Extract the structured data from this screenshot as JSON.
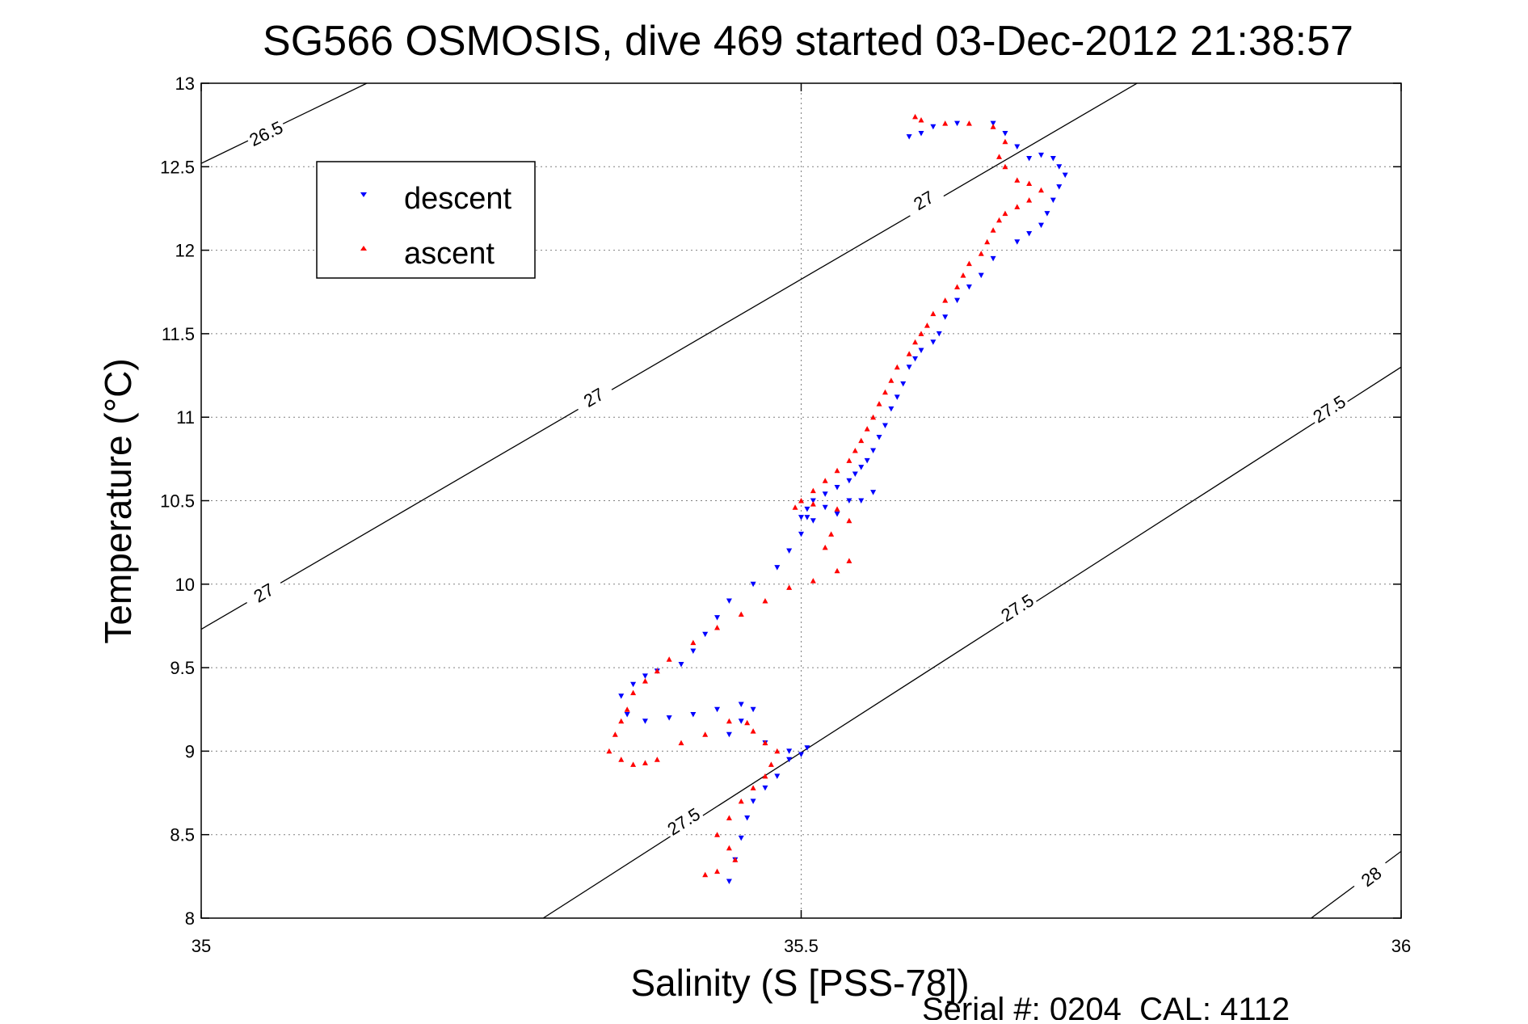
{
  "chart_data": {
    "type": "scatter",
    "title": "SG566 OSMOSIS, dive 469 started 03-Dec-2012 21:38:57",
    "xlabel": "Salinity (S [PSS-78])",
    "ylabel": "Temperature (°C)",
    "xlim": [
      35,
      36
    ],
    "ylim": [
      8,
      13
    ],
    "xticks": [
      35,
      35.5,
      36
    ],
    "xtick_labels": [
      "35",
      "35.5",
      "36"
    ],
    "yticks": [
      8,
      8.5,
      9,
      9.5,
      10,
      10.5,
      11,
      11.5,
      12,
      12.5,
      13
    ],
    "ytick_labels": [
      "8",
      "8.5",
      "9",
      "9.5",
      "10",
      "10.5",
      "11",
      "11.5",
      "12",
      "12.5",
      "13"
    ],
    "grid": true,
    "legend_position": "top-left",
    "footer": "Serial #: 0204  CAL: 4112",
    "density_contours": [
      {
        "label": "26.5",
        "points": [
          [
            35,
            12.52
          ],
          [
            35.138,
            13
          ]
        ],
        "label_at": [
          [
            35.054,
            12.7
          ]
        ]
      },
      {
        "label": "27",
        "points": [
          [
            35,
            9.73
          ],
          [
            35.78,
            13
          ]
        ],
        "label_at": [
          [
            35.052,
            9.95
          ],
          [
            35.327,
            11.12
          ],
          [
            35.602,
            12.3
          ]
        ]
      },
      {
        "label": "27.5",
        "points": [
          [
            35.285,
            8
          ],
          [
            36,
            11.3
          ]
        ],
        "label_at": [
          [
            35.402,
            8.58
          ],
          [
            35.68,
            9.86
          ],
          [
            35.94,
            11.05
          ]
        ]
      },
      {
        "label": "28",
        "points": [
          [
            35.925,
            8
          ],
          [
            36,
            8.4
          ]
        ],
        "label_at": [
          [
            35.975,
            8.25
          ]
        ]
      }
    ],
    "series": [
      {
        "name": "descent",
        "color": "#0000ff",
        "marker": "triangle-down",
        "x": [
          35.59,
          35.6,
          35.61,
          35.63,
          35.66,
          35.67,
          35.68,
          35.69,
          35.7,
          35.71,
          35.715,
          35.72,
          35.715,
          35.71,
          35.705,
          35.7,
          35.69,
          35.68,
          35.66,
          35.65,
          35.64,
          35.63,
          35.62,
          35.615,
          35.61,
          35.6,
          35.595,
          35.59,
          35.585,
          35.58,
          35.575,
          35.57,
          35.565,
          35.56,
          35.555,
          35.55,
          35.545,
          35.54,
          35.53,
          35.52,
          35.51,
          35.505,
          35.5,
          35.51,
          35.53,
          35.55,
          35.56,
          35.54,
          35.52,
          35.505,
          35.5,
          35.49,
          35.48,
          35.46,
          35.44,
          35.43,
          35.42,
          35.41,
          35.4,
          35.38,
          35.37,
          35.36,
          35.35,
          35.355,
          35.37,
          35.39,
          35.41,
          35.43,
          35.45,
          35.46,
          35.45,
          35.44,
          35.47,
          35.49,
          35.5,
          35.505,
          35.49,
          35.48,
          35.47,
          35.46,
          35.455,
          35.45,
          35.445,
          35.44
        ],
        "y": [
          12.68,
          12.7,
          12.74,
          12.76,
          12.76,
          12.7,
          12.62,
          12.55,
          12.57,
          12.55,
          12.5,
          12.45,
          12.38,
          12.3,
          12.22,
          12.15,
          12.1,
          12.05,
          11.95,
          11.85,
          11.78,
          11.7,
          11.6,
          11.5,
          11.45,
          11.4,
          11.35,
          11.3,
          11.2,
          11.12,
          11.05,
          10.95,
          10.88,
          10.8,
          10.74,
          10.7,
          10.66,
          10.62,
          10.58,
          10.54,
          10.5,
          10.45,
          10.4,
          10.38,
          10.42,
          10.5,
          10.55,
          10.5,
          10.46,
          10.4,
          10.3,
          10.2,
          10.1,
          10.0,
          9.9,
          9.8,
          9.7,
          9.6,
          9.52,
          9.48,
          9.45,
          9.4,
          9.33,
          9.22,
          9.18,
          9.2,
          9.22,
          9.25,
          9.28,
          9.25,
          9.18,
          9.1,
          9.05,
          9.0,
          8.98,
          9.02,
          8.95,
          8.85,
          8.78,
          8.7,
          8.6,
          8.48,
          8.35,
          8.22
        ]
      },
      {
        "name": "ascent",
        "color": "#ff0000",
        "marker": "triangle-up",
        "x": [
          35.595,
          35.6,
          35.62,
          35.64,
          35.66,
          35.67,
          35.665,
          35.67,
          35.68,
          35.69,
          35.7,
          35.69,
          35.68,
          35.67,
          35.665,
          35.66,
          35.655,
          35.65,
          35.64,
          35.635,
          35.63,
          35.62,
          35.61,
          35.605,
          35.6,
          35.595,
          35.59,
          35.58,
          35.575,
          35.57,
          35.565,
          35.56,
          35.555,
          35.55,
          35.545,
          35.54,
          35.53,
          35.52,
          35.51,
          35.5,
          35.495,
          35.51,
          35.53,
          35.54,
          35.525,
          35.52,
          35.54,
          35.53,
          35.51,
          35.49,
          35.47,
          35.45,
          35.43,
          35.41,
          35.39,
          35.38,
          35.37,
          35.36,
          35.355,
          35.35,
          35.345,
          35.34,
          35.35,
          35.36,
          35.37,
          35.38,
          35.4,
          35.42,
          35.44,
          35.455,
          35.46,
          35.47,
          35.48,
          35.475,
          35.47,
          35.46,
          35.45,
          35.44,
          35.43,
          35.44,
          35.445,
          35.43,
          35.42
        ],
        "y": [
          12.8,
          12.78,
          12.76,
          12.76,
          12.74,
          12.65,
          12.56,
          12.5,
          12.42,
          12.4,
          12.36,
          12.3,
          12.26,
          12.22,
          12.18,
          12.12,
          12.05,
          11.98,
          11.92,
          11.85,
          11.78,
          11.7,
          11.62,
          11.55,
          11.5,
          11.45,
          11.38,
          11.3,
          11.22,
          11.15,
          11.08,
          11.0,
          10.93,
          10.86,
          10.8,
          10.74,
          10.68,
          10.62,
          10.56,
          10.5,
          10.46,
          10.48,
          10.45,
          10.38,
          10.3,
          10.22,
          10.14,
          10.08,
          10.02,
          9.98,
          9.9,
          9.82,
          9.74,
          9.65,
          9.55,
          9.48,
          9.42,
          9.35,
          9.25,
          9.18,
          9.1,
          9.0,
          8.95,
          8.92,
          8.93,
          8.95,
          9.05,
          9.1,
          9.18,
          9.17,
          9.12,
          9.05,
          9.0,
          8.92,
          8.85,
          8.78,
          8.7,
          8.6,
          8.5,
          8.42,
          8.35,
          8.28,
          8.26
        ]
      }
    ]
  }
}
